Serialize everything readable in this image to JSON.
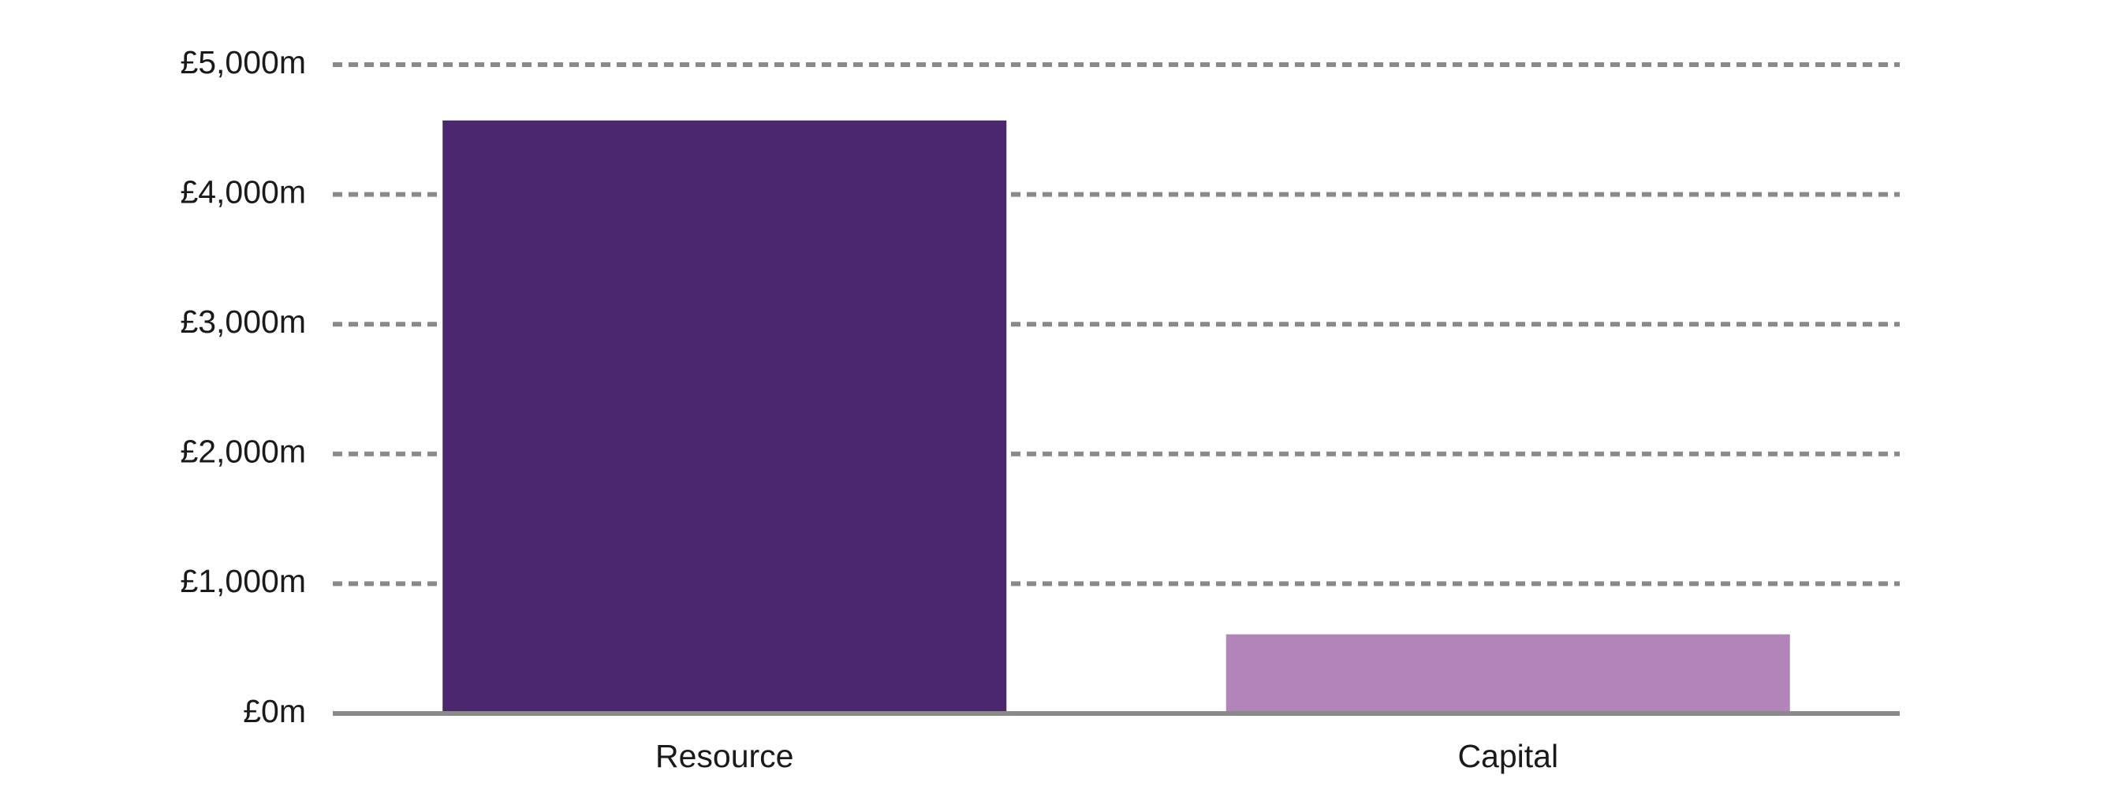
{
  "chart_data": {
    "type": "bar",
    "categories": [
      "Resource",
      "Capital"
    ],
    "values": [
      4570,
      610
    ],
    "colors": [
      "#4b2770",
      "#b384b9"
    ],
    "ylim": [
      0,
      5000
    ],
    "yticks": [
      {
        "value": 0,
        "label": "£0m"
      },
      {
        "value": 1000,
        "label": "£1,000m"
      },
      {
        "value": 2000,
        "label": "£2,000m"
      },
      {
        "value": 3000,
        "label": "£3,000m"
      },
      {
        "value": 4000,
        "label": "£4,000m"
      },
      {
        "value": 5000,
        "label": "£5,000m"
      }
    ],
    "grid": true
  }
}
